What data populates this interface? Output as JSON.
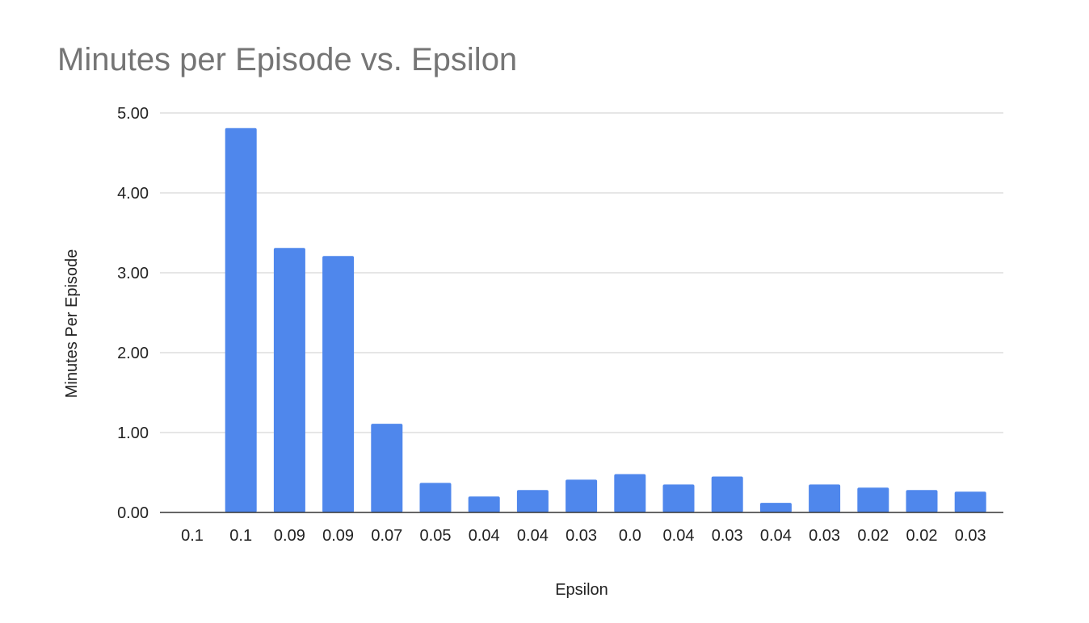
{
  "chart_data": {
    "type": "bar",
    "title": "Minutes per Episode vs. Epsilon",
    "xlabel": "Epsilon",
    "ylabel": "Minutes Per Episode",
    "categories": [
      "0.1",
      "0.1",
      "0.09",
      "0.09",
      "0.07",
      "0.05",
      "0.04",
      "0.04",
      "0.03",
      "0.0",
      "0.04",
      "0.03",
      "0.04",
      "0.03",
      "0.02",
      "0.02",
      "0.03"
    ],
    "values": [
      0,
      4.81,
      3.31,
      3.21,
      1.11,
      0.37,
      0.2,
      0.28,
      0.41,
      0.48,
      0.35,
      0.45,
      0.12,
      0.35,
      0.31,
      0.28,
      0.26
    ],
    "yticks": [
      "0.00",
      "1.00",
      "2.00",
      "3.00",
      "4.00",
      "5.00"
    ],
    "ylim": [
      0,
      5
    ],
    "grid": true,
    "bar_color": "#4f87ec"
  }
}
